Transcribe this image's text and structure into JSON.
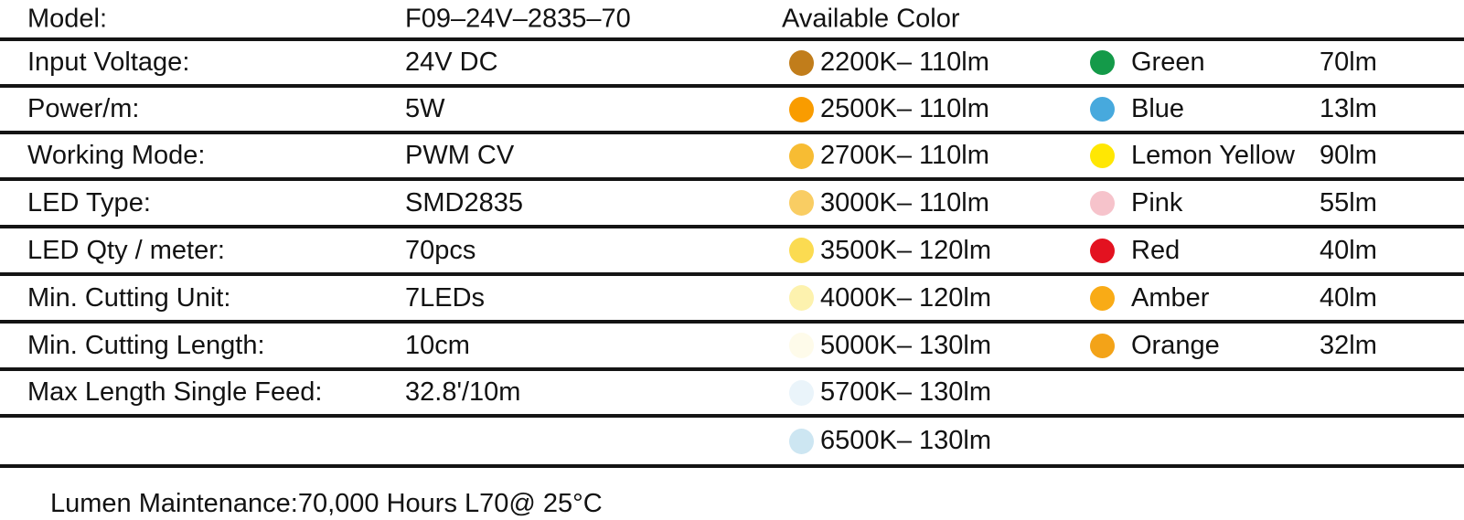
{
  "header": {
    "model_label": "Model:",
    "model_value": "F09–24V–2835–70",
    "available_color_title": "Available Color"
  },
  "rows": [
    {
      "spec_label": "Input Voltage:",
      "spec_value": "24V DC",
      "cct_color": "#c17d1b",
      "cct_label": "2200K– 110lm",
      "color_swatch": "#149a49",
      "color_name": "Green",
      "lumen": "70lm"
    },
    {
      "spec_label": "Power/m:",
      "spec_value": "5W",
      "cct_color": "#f99c00",
      "cct_label": "2500K– 110lm",
      "color_swatch": "#47a9dd",
      "color_name": "Blue",
      "lumen": "13lm"
    },
    {
      "spec_label": "Working Mode:",
      "spec_value": "PWM CV",
      "cct_color": "#f7bc33",
      "cct_label": "2700K– 110lm",
      "color_swatch": "#ffe703",
      "color_name": "Lemon Yellow",
      "lumen": "90lm"
    },
    {
      "spec_label": "LED Type:",
      "spec_value": "SMD2835",
      "cct_color": "#f9cd63",
      "cct_label": "3000K– 110lm",
      "color_swatch": "#f6c3cb",
      "color_name": "Pink",
      "lumen": "55lm"
    },
    {
      "spec_label": "LED Qty / meter:",
      "spec_value": "70pcs",
      "cct_color": "#fbdb51",
      "cct_label": "3500K– 120lm",
      "color_swatch": "#e31220",
      "color_name": "Red",
      "lumen": "40lm"
    },
    {
      "spec_label": "Min. Cutting Unit:",
      "spec_value": "7LEDs",
      "cct_color": "#fdf2ae",
      "cct_label": "4000K– 120lm",
      "color_swatch": "#f9ab16",
      "color_name": "Amber",
      "lumen": "40lm"
    },
    {
      "spec_label": "Min. Cutting Length:",
      "spec_value": "10cm",
      "cct_color": "#fefbea",
      "cct_label": "5000K– 130lm",
      "color_swatch": "#f3a318",
      "color_name": "Orange",
      "lumen": "32lm"
    },
    {
      "spec_label": "Max Length Single Feed:",
      "spec_value": "32.8'/10m",
      "cct_color": "#eaf4fa",
      "cct_label": "5700K– 130lm",
      "color_swatch": null,
      "color_name": null,
      "lumen": null
    },
    {
      "spec_label": null,
      "spec_value": null,
      "cct_color": "#cde6f2",
      "cct_label": "6500K– 130lm",
      "color_swatch": null,
      "color_name": null,
      "lumen": null
    }
  ],
  "footer": {
    "lumen_maintenance": "Lumen Maintenance:70,000 Hours L70@ 25°C"
  }
}
